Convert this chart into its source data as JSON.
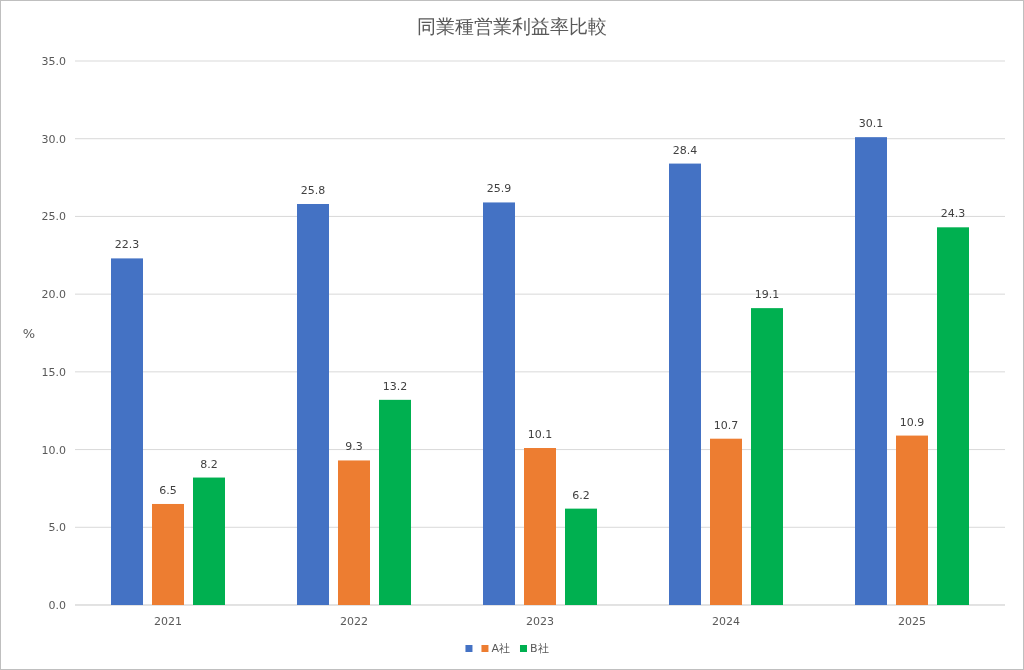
{
  "chart_data": {
    "type": "bar",
    "title": "同業種営業利益率比較",
    "ylabel": "%",
    "categories": [
      "2021",
      "2022",
      "2023",
      "2024",
      "2025"
    ],
    "series": [
      {
        "color": "#4472c4",
        "values": [
          22.3,
          25.8,
          25.9,
          28.4,
          30.1
        ]
      },
      {
        "name": "A社",
        "color": "#ed7d31",
        "values": [
          6.5,
          9.3,
          10.1,
          10.7,
          10.9
        ]
      },
      {
        "name": "B社",
        "color": "#00b050",
        "values": [
          8.2,
          13.2,
          6.2,
          19.1,
          24.3
        ]
      }
    ],
    "ylim": [
      0,
      35
    ],
    "yticks": [
      {
        "value": 0,
        "label": "0.0"
      },
      {
        "value": 5,
        "label": "5.0"
      },
      {
        "value": 10,
        "label": "10.0"
      },
      {
        "value": 15,
        "label": "15.0"
      },
      {
        "value": 20,
        "label": "20.0"
      },
      {
        "value": 25,
        "label": "25.0"
      },
      {
        "value": 30,
        "label": "30.0"
      },
      {
        "value": 35,
        "label": "35.0"
      }
    ],
    "grid": "y",
    "legend": "bottom",
    "data_labels": true
  }
}
